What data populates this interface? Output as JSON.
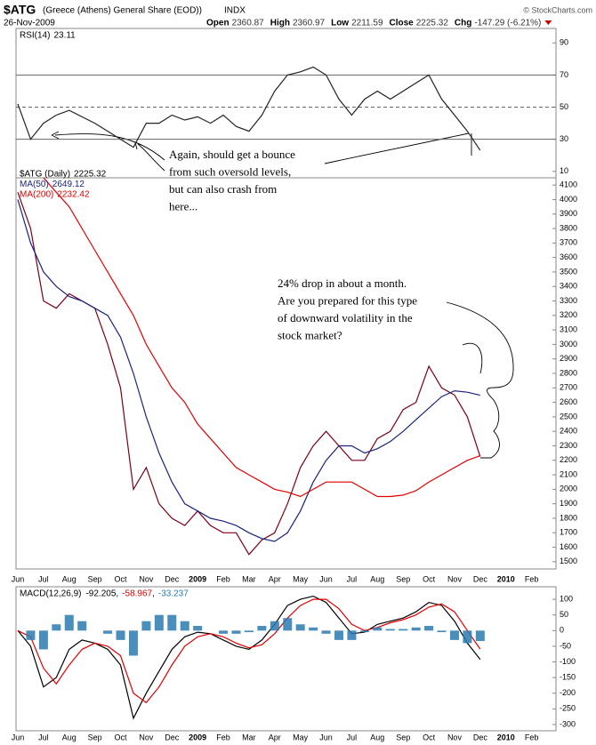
{
  "header": {
    "symbol": "$ATG",
    "name": "(Greece (Athens) General Share (EOD))",
    "exchange": "INDX",
    "date": "26-Nov-2009",
    "quote": [
      {
        "label": "Open",
        "value": 2360.87
      },
      {
        "label": "High",
        "value": 2360.97
      },
      {
        "label": "Low",
        "value": 2211.59
      },
      {
        "label": "Close",
        "value": 2225.32
      },
      {
        "label": "Chg",
        "value": "-147.29 (-6.21%)"
      }
    ],
    "credit": "© StockCharts.com"
  },
  "annotations": [
    {
      "lines": [
        "Again, should get a bounce",
        "from such oversold levels,",
        "but can also crash from",
        "here..."
      ]
    },
    {
      "lines": [
        "24% drop in about a month.",
        "Are you prepared for this type",
        "of downward volatility in the",
        "stock market?"
      ]
    }
  ],
  "chart_data": [
    {
      "type": "line",
      "ylim": [
        6,
        99
      ],
      "yticks": [
        10,
        30,
        50,
        70,
        90
      ],
      "reference_lines": [
        {
          "value": 70
        },
        {
          "value": 50,
          "style": "dashed"
        },
        {
          "value": 30
        }
      ],
      "series": [
        {
          "name": "RSI(14)",
          "color": "#222222",
          "last": 23.11,
          "values": [
            52,
            30,
            40,
            45,
            48,
            44,
            40,
            35,
            30,
            25,
            40,
            40,
            45,
            42,
            44,
            40,
            45,
            38,
            35,
            45,
            60,
            70,
            72,
            75,
            70,
            55,
            45,
            55,
            60,
            55,
            60,
            65,
            70,
            55,
            45,
            35,
            23.11,
            null,
            null,
            null,
            null
          ]
        }
      ]
    },
    {
      "type": "line",
      "ylim": [
        1450,
        4150
      ],
      "yticks": [
        1500,
        1600,
        1700,
        1800,
        1900,
        2000,
        2100,
        2200,
        2300,
        2400,
        2500,
        2600,
        2700,
        2800,
        2900,
        3000,
        3100,
        3200,
        3300,
        3400,
        3500,
        3600,
        3700,
        3800,
        3900,
        4000,
        4100
      ],
      "categories": [
        "Jun",
        null,
        "Jul",
        null,
        "Aug",
        null,
        "Sep",
        null,
        "Oct",
        null,
        "Nov",
        null,
        "Dec",
        null,
        "2009",
        null,
        "Feb",
        null,
        "Mar",
        null,
        "Apr",
        null,
        "May",
        null,
        "Jun",
        null,
        "Jul",
        null,
        "Aug",
        null,
        "Sep",
        null,
        "Oct",
        null,
        "Nov",
        null,
        "Dec",
        null,
        "2010",
        null,
        "Feb"
      ],
      "series": [
        {
          "name": "$ATG (Daily)",
          "color": "#7a0018",
          "last": 2225.32,
          "values": [
            4050,
            3800,
            3300,
            3250,
            3350,
            3300,
            3250,
            3000,
            2700,
            2000,
            2150,
            1900,
            1800,
            1750,
            1850,
            1750,
            1700,
            1700,
            1550,
            1650,
            1700,
            1900,
            2150,
            2300,
            2400,
            2300,
            2200,
            2200,
            2350,
            2400,
            2550,
            2600,
            2850,
            2700,
            2650,
            2500,
            2225,
            null,
            null,
            null,
            null
          ]
        },
        {
          "name": "MA(50)",
          "color": "#1a237e",
          "last": 2649.12,
          "values": [
            4000,
            3700,
            3500,
            3400,
            3330,
            3300,
            3250,
            3200,
            3050,
            2800,
            2500,
            2250,
            2050,
            1900,
            1850,
            1800,
            1780,
            1750,
            1700,
            1660,
            1640,
            1700,
            1850,
            2050,
            2200,
            2300,
            2300,
            2250,
            2280,
            2330,
            2400,
            2480,
            2560,
            2640,
            2680,
            2670,
            2649,
            null,
            null,
            null,
            null
          ]
        },
        {
          "name": "MA(200)",
          "color": "#e00000",
          "last": 2232.42,
          "values": [
            null,
            null,
            4150,
            4050,
            3950,
            3800,
            3650,
            3500,
            3350,
            3200,
            3000,
            2850,
            2700,
            2600,
            2450,
            2350,
            2250,
            2150,
            2100,
            2050,
            2000,
            1980,
            1950,
            2000,
            2050,
            2050,
            2050,
            2000,
            1950,
            1950,
            1960,
            1990,
            2050,
            2100,
            2150,
            2200,
            2232,
            null,
            null,
            null,
            null
          ]
        }
      ]
    },
    {
      "type": "line",
      "title": "MACD(12,26,9)",
      "legend_separator": ",",
      "ylim": [
        -320,
        140
      ],
      "yticks": [
        100,
        50,
        0,
        -50,
        -100,
        -150,
        -200,
        -250,
        -300
      ],
      "categories": [
        "Jun",
        null,
        "Jul",
        null,
        "Aug",
        null,
        "Sep",
        null,
        "Oct",
        null,
        "Nov",
        null,
        "Dec",
        null,
        "2009",
        null,
        "Feb",
        null,
        "Mar",
        null,
        "Apr",
        null,
        "May",
        null,
        "Jun",
        null,
        "Jul",
        null,
        "Aug",
        null,
        "Sep",
        null,
        "Oct",
        null,
        "Nov",
        null,
        "Dec",
        null,
        "2010",
        null,
        "Feb"
      ],
      "series": [
        {
          "color": "#000000",
          "last": -92.205,
          "values": [
            0,
            -50,
            -180,
            -150,
            -60,
            -30,
            -40,
            -60,
            -110,
            -280,
            -200,
            -130,
            -60,
            -20,
            -5,
            -10,
            -30,
            -50,
            -60,
            -30,
            20,
            80,
            100,
            110,
            90,
            40,
            -10,
            -5,
            20,
            30,
            40,
            60,
            90,
            80,
            30,
            -40,
            -92.205,
            null,
            null,
            null,
            null
          ]
        },
        {
          "color": "#e00000",
          "last": -58.967,
          "values": [
            0,
            -20,
            -120,
            -170,
            -110,
            -60,
            -40,
            -50,
            -80,
            -200,
            -230,
            -180,
            -110,
            -50,
            -20,
            -10,
            -20,
            -40,
            -55,
            -45,
            -10,
            40,
            80,
            100,
            100,
            70,
            20,
            0,
            10,
            25,
            35,
            50,
            75,
            85,
            60,
            0,
            -58.967,
            null,
            null,
            null,
            null
          ]
        },
        {
          "color": "#2a7ab0",
          "style": "bar",
          "last": -33.237,
          "values": [
            0,
            -30,
            -60,
            20,
            50,
            30,
            0,
            -10,
            -30,
            -80,
            30,
            50,
            50,
            30,
            15,
            0,
            -10,
            -10,
            -5,
            15,
            30,
            40,
            20,
            10,
            -10,
            -30,
            -30,
            -5,
            10,
            5,
            5,
            10,
            15,
            -5,
            -30,
            -40,
            -33.237,
            null,
            null,
            null,
            null
          ]
        }
      ]
    }
  ]
}
